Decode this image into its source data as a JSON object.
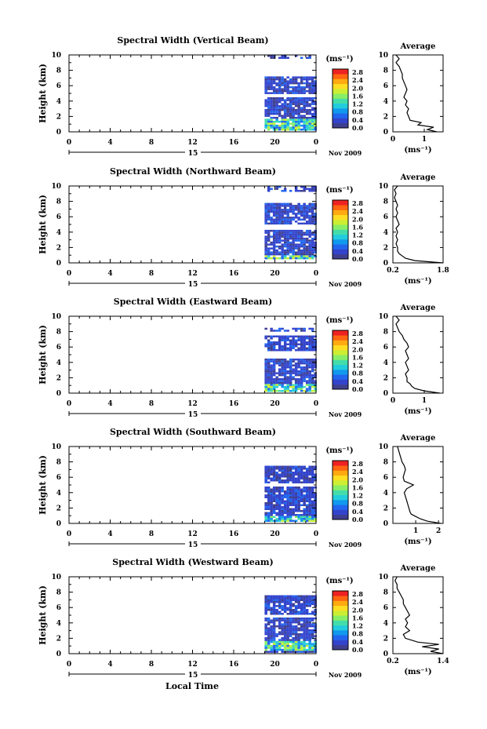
{
  "figure": {
    "xlabel": "Local Time",
    "date_label": "Nov 2009",
    "day_label": "15",
    "avg_title": "Average",
    "cbar_unit": "(ms⁻¹)",
    "avg_xlabel": "(ms⁻¹)",
    "colorbar_ticks": [
      "2.8",
      "2.4",
      "2.0",
      "1.6",
      "1.2",
      "0.8",
      "0.4",
      "0.0"
    ],
    "colorbar_colors": [
      "#3f3f8f",
      "#3344cc",
      "#2266ee",
      "#1199ee",
      "#22ccdd",
      "#44ddaa",
      "#88ee66",
      "#ccee33",
      "#ffdd22",
      "#ffaa11",
      "#ff6611",
      "#ee2222"
    ]
  },
  "chart_data": [
    {
      "type": "heatmap",
      "title": "Spectral Width (Vertical Beam)",
      "ylabel": "Height (km)",
      "xlim": [
        0,
        24
      ],
      "ylim": [
        0,
        10
      ],
      "xticks": [
        "0",
        "4",
        "8",
        "12",
        "16",
        "20",
        "0"
      ],
      "yticks": [
        "0",
        "2",
        "4",
        "6",
        "8",
        "10"
      ],
      "data_start_hour": 19,
      "data_end_hour": 24,
      "bands_km": [
        [
          0.4,
          4.5
        ],
        [
          5.0,
          7.2
        ],
        [
          9.6,
          10.0
        ]
      ],
      "strong_layer_km": [
        0.4,
        1.8
      ],
      "average": {
        "xticks": [
          "0",
          "1"
        ],
        "xlim": [
          0,
          1.6
        ],
        "height_km": [
          0,
          0.3,
          0.6,
          0.9,
          1.2,
          1.5,
          2,
          2.5,
          3,
          3.5,
          4,
          4.5,
          5,
          5.5,
          6,
          6.5,
          7,
          7.5,
          8,
          8.5,
          9,
          9.5,
          10
        ],
        "value": [
          1.4,
          1.1,
          1.3,
          0.8,
          0.9,
          0.55,
          0.5,
          0.45,
          0.5,
          0.4,
          0.45,
          0.35,
          0.4,
          0.45,
          0.4,
          0.35,
          0.3,
          0.3,
          0.25,
          0.2,
          0.1,
          0.2,
          0.1
        ]
      }
    },
    {
      "type": "heatmap",
      "title": "Spectral Width (Northward Beam)",
      "ylabel": "Height (km)",
      "xlim": [
        0,
        24
      ],
      "ylim": [
        0,
        10
      ],
      "xticks": [
        "0",
        "4",
        "8",
        "12",
        "16",
        "20",
        "0"
      ],
      "yticks": [
        "0",
        "2",
        "4",
        "6",
        "8",
        "10"
      ],
      "data_start_hour": 19,
      "data_end_hour": 24,
      "bands_km": [
        [
          0.5,
          4.3
        ],
        [
          5.0,
          7.8
        ],
        [
          9.3,
          10.0
        ]
      ],
      "strong_layer_km": [
        0.5,
        1.2
      ],
      "average": {
        "xticks": [
          "0.2",
          "1.8"
        ],
        "xlim": [
          0.2,
          1.8
        ],
        "height_km": [
          0,
          0.3,
          0.6,
          0.9,
          1.2,
          1.5,
          2,
          2.5,
          3,
          3.5,
          4,
          4.5,
          5,
          5.5,
          6,
          6.5,
          7,
          7.5,
          8,
          8.5,
          9,
          9.5,
          10
        ],
        "value": [
          1.8,
          0.9,
          0.6,
          0.5,
          0.4,
          0.35,
          0.35,
          0.3,
          0.35,
          0.3,
          0.35,
          0.3,
          0.4,
          0.35,
          0.3,
          0.35,
          0.3,
          0.35,
          0.3,
          0.25,
          0.3,
          0.25,
          0.35
        ]
      }
    },
    {
      "type": "heatmap",
      "title": "Spectral Width (Eastward Beam)",
      "ylabel": "Height (km)",
      "xlim": [
        0,
        24
      ],
      "ylim": [
        0,
        10
      ],
      "xticks": [
        "0",
        "4",
        "8",
        "12",
        "16",
        "20",
        "0"
      ],
      "yticks": [
        "0",
        "2",
        "4",
        "6",
        "8",
        "10"
      ],
      "data_start_hour": 19,
      "data_end_hour": 24,
      "bands_km": [
        [
          0.3,
          4.5
        ],
        [
          5.5,
          7.5
        ],
        [
          8.0,
          8.5
        ]
      ],
      "strong_layer_km": [
        0.3,
        1.2
      ],
      "average": {
        "xticks": [
          "0",
          "1"
        ],
        "xlim": [
          0,
          1.6
        ],
        "height_km": [
          0,
          0.3,
          0.6,
          0.9,
          1.2,
          1.5,
          2,
          2.5,
          3,
          3.5,
          4,
          4.5,
          5,
          5.5,
          6,
          6.5,
          7,
          7.5,
          8,
          8.5,
          9,
          9.5,
          10
        ],
        "value": [
          1.5,
          1.0,
          0.7,
          0.6,
          0.55,
          0.45,
          0.45,
          0.4,
          0.5,
          0.45,
          0.4,
          0.5,
          0.45,
          0.4,
          0.5,
          0.45,
          0.35,
          0.3,
          0.2,
          0.15,
          0.1,
          0.2,
          0.1
        ]
      }
    },
    {
      "type": "heatmap",
      "title": "Spectral Width (Southward Beam)",
      "ylabel": "Height (km)",
      "xlim": [
        0,
        24
      ],
      "ylim": [
        0,
        10
      ],
      "xticks": [
        "0",
        "4",
        "8",
        "12",
        "16",
        "20",
        "0"
      ],
      "yticks": [
        "0",
        "2",
        "4",
        "6",
        "8",
        "10"
      ],
      "data_start_hour": 19,
      "data_end_hour": 24,
      "bands_km": [
        [
          0.3,
          4.8
        ],
        [
          5.3,
          7.5
        ]
      ],
      "strong_layer_km": [
        0.3,
        1.0
      ],
      "average": {
        "xticks": [
          "1",
          "2"
        ],
        "xlim": [
          0,
          2.2
        ],
        "height_km": [
          0,
          0.3,
          0.6,
          0.9,
          1.2,
          1.5,
          2,
          2.5,
          3,
          3.5,
          4,
          4.5,
          5,
          5.5,
          6,
          6.5,
          7,
          7.5,
          8,
          8.5,
          9,
          9.5,
          10
        ],
        "value": [
          2.1,
          1.5,
          1.2,
          1.0,
          0.8,
          0.75,
          0.7,
          0.65,
          0.6,
          0.55,
          0.5,
          0.6,
          0.9,
          0.5,
          0.45,
          0.5,
          0.55,
          0.5,
          0.4,
          0.35,
          0.3,
          0.25,
          0.2
        ]
      }
    },
    {
      "type": "heatmap",
      "title": "Spectral Width (Westward Beam)",
      "ylabel": "Height (km)",
      "xlim": [
        0,
        24
      ],
      "ylim": [
        0,
        10
      ],
      "xticks": [
        "0",
        "4",
        "8",
        "12",
        "16",
        "20",
        "0"
      ],
      "yticks": [
        "0",
        "2",
        "4",
        "6",
        "8",
        "10"
      ],
      "data_start_hour": 19,
      "data_end_hour": 24,
      "bands_km": [
        [
          0.2,
          4.7
        ],
        [
          5.2,
          7.6
        ]
      ],
      "strong_layer_km": [
        0.6,
        1.8
      ],
      "average": {
        "xticks": [
          "0.2",
          "1.4"
        ],
        "xlim": [
          0.2,
          1.4
        ],
        "height_km": [
          0,
          0.3,
          0.6,
          0.9,
          1.2,
          1.5,
          2,
          2.5,
          3,
          3.5,
          4,
          4.5,
          5,
          5.5,
          6,
          6.5,
          7,
          7.5,
          8,
          8.5,
          9,
          9.5,
          10
        ],
        "value": [
          1.4,
          1.1,
          1.3,
          0.9,
          1.3,
          0.8,
          0.5,
          0.45,
          0.6,
          0.5,
          0.55,
          0.5,
          0.6,
          0.55,
          0.5,
          0.45,
          0.45,
          0.4,
          0.35,
          0.3,
          0.3,
          0.25,
          0.3
        ]
      }
    }
  ]
}
